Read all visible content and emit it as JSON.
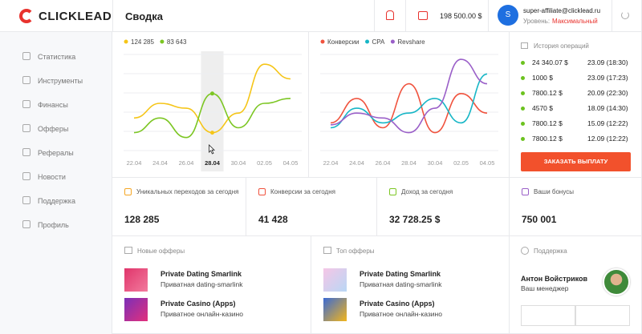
{
  "header": {
    "logo": "CLICKLEAD",
    "title": "Сводка",
    "balance": "198 500.00 $",
    "avatar": "S",
    "email": "super-affiliate@clicklead.ru",
    "level_label": "Уровень:",
    "level": "Максимальный"
  },
  "sidebar": [
    "Статистика",
    "Инструменты",
    "Финансы",
    "Офферы",
    "Рефералы",
    "Новости",
    "Поддержка",
    "Профиль"
  ],
  "chart_data": [
    {
      "type": "line",
      "categories": [
        "22.04",
        "24.04",
        "26.04",
        "28.04",
        "30.04",
        "02.05",
        "04.05"
      ],
      "ylim": [
        0,
        100
      ],
      "series": [
        {
          "name": "124 285",
          "color": "#f5c518",
          "values": [
            35,
            50,
            45,
            20,
            40,
            90,
            75
          ]
        },
        {
          "name": "83 643",
          "color": "#7cc623",
          "values": [
            20,
            35,
            15,
            60,
            25,
            50,
            55
          ]
        }
      ]
    },
    {
      "type": "line",
      "categories": [
        "22.04",
        "24.04",
        "26.04",
        "28.04",
        "30.04",
        "02.05",
        "04.05"
      ],
      "ylim": [
        0,
        100
      ],
      "series": [
        {
          "name": "Конверсии",
          "color": "#f0533e",
          "values": [
            30,
            55,
            25,
            70,
            20,
            60,
            40
          ]
        },
        {
          "name": "CPA",
          "color": "#17b6c6",
          "values": [
            25,
            45,
            30,
            40,
            55,
            30,
            80
          ]
        },
        {
          "name": "Revshare",
          "color": "#9a5fc8",
          "values": [
            28,
            40,
            35,
            20,
            45,
            95,
            70
          ]
        }
      ]
    }
  ],
  "history": {
    "title": "История операций",
    "items": [
      {
        "amount": "24 340.07 $",
        "date": "23.09 (18:30)"
      },
      {
        "amount": "1000 $",
        "date": "23.09 (17:23)"
      },
      {
        "amount": "7800.12 $",
        "date": "20.09 (22:30)"
      },
      {
        "amount": "4570 $",
        "date": "18.09 (14:30)"
      },
      {
        "amount": "7800.12 $",
        "date": "15.09 (12:22)"
      },
      {
        "amount": "7800.12 $",
        "date": "12.09 (12:22)"
      }
    ],
    "button": "ЗАКАЗАТЬ ВЫПЛАТУ"
  },
  "stats": [
    {
      "label": "Уникальных переходов за сегодня",
      "value": "128 285"
    },
    {
      "label": "Конверсии за сегодня",
      "value": "41 428"
    },
    {
      "label": "Доход за сегодня",
      "value": "32 728.25 $"
    },
    {
      "label": "Ваши бонусы",
      "value": "750 001"
    }
  ],
  "new_offers": {
    "title": "Новые офферы",
    "items": [
      {
        "name": "Private Dating Smarlink",
        "desc": "Приватная dating-smarlink"
      },
      {
        "name": "Private Casino (Apps)",
        "desc": "Приватное онлайн-казино"
      }
    ]
  },
  "top_offers": {
    "title": "Топ офферы",
    "items": [
      {
        "name": "Private Dating Smarlink",
        "desc": "Приватная dating-smarlink"
      },
      {
        "name": "Private Casino (Apps)",
        "desc": "Приватное онлайн-казино"
      }
    ]
  },
  "support": {
    "title": "Поддержка",
    "name": "Антон Войстриков",
    "role": "Ваш менеджер"
  }
}
